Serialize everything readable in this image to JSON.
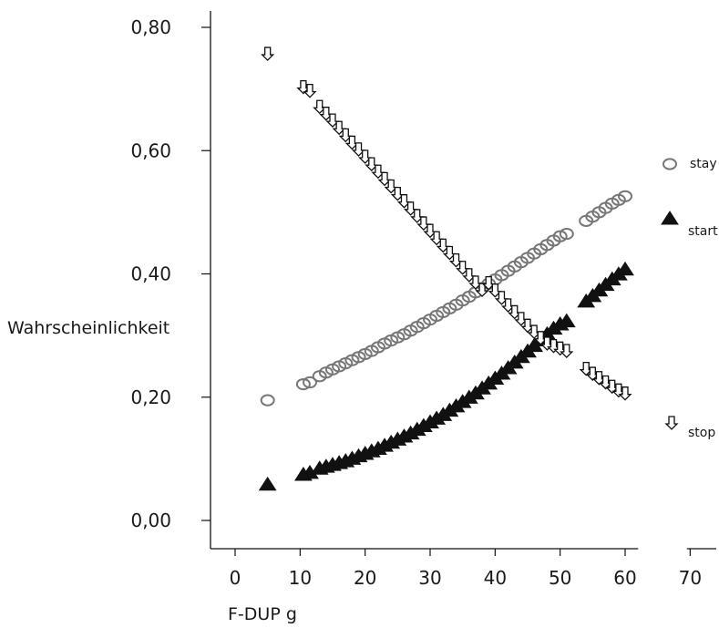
{
  "chart_data": {
    "type": "scatter",
    "title": "",
    "xlabel": "F-DUP g",
    "ylabel": "Wahrscheinlichkeit",
    "xlim": [
      -3.5,
      72
    ],
    "ylim": [
      -0.045,
      0.825
    ],
    "x_ticks": [
      0,
      10,
      20,
      30,
      40,
      50,
      60,
      70
    ],
    "y_ticks": [
      0.0,
      0.2,
      0.4,
      0.6,
      0.8
    ],
    "x_tick_labels": [
      "0",
      "10",
      "20",
      "30",
      "40",
      "50",
      "60",
      "70"
    ],
    "y_tick_labels": [
      "0,00",
      "0,20",
      "0,40",
      "0,60",
      "0,80"
    ],
    "grid": false,
    "legend_position": "right",
    "series": [
      {
        "name": "stay",
        "marker": "circle-open",
        "color": "#777777",
        "points": [
          [
            5,
            0.195
          ],
          [
            10.5,
            0.221
          ],
          [
            11.5,
            0.224
          ],
          [
            13,
            0.234
          ],
          [
            14,
            0.24
          ],
          [
            15,
            0.245
          ],
          [
            16,
            0.25
          ],
          [
            17,
            0.255
          ],
          [
            18,
            0.26
          ],
          [
            19,
            0.265
          ],
          [
            20,
            0.27
          ],
          [
            21,
            0.275
          ],
          [
            22,
            0.281
          ],
          [
            23,
            0.287
          ],
          [
            24,
            0.292
          ],
          [
            25,
            0.297
          ],
          [
            26,
            0.302
          ],
          [
            27,
            0.308
          ],
          [
            28,
            0.314
          ],
          [
            29,
            0.32
          ],
          [
            30,
            0.326
          ],
          [
            31,
            0.332
          ],
          [
            32,
            0.338
          ],
          [
            33,
            0.344
          ],
          [
            34,
            0.35
          ],
          [
            35,
            0.357
          ],
          [
            36,
            0.363
          ],
          [
            37,
            0.37
          ],
          [
            38,
            0.377
          ],
          [
            39,
            0.384
          ],
          [
            40,
            0.391
          ],
          [
            41,
            0.398
          ],
          [
            42,
            0.405
          ],
          [
            43,
            0.412
          ],
          [
            44,
            0.419
          ],
          [
            45,
            0.426
          ],
          [
            46,
            0.433
          ],
          [
            47,
            0.44
          ],
          [
            48,
            0.447
          ],
          [
            49,
            0.454
          ],
          [
            50,
            0.461
          ],
          [
            51,
            0.465
          ],
          [
            54,
            0.486
          ],
          [
            55,
            0.493
          ],
          [
            56,
            0.5
          ],
          [
            57,
            0.507
          ],
          [
            58,
            0.514
          ],
          [
            59,
            0.52
          ],
          [
            60,
            0.526
          ]
        ]
      },
      {
        "name": "start",
        "marker": "triangle-filled",
        "color": "#111111",
        "points": [
          [
            5,
            0.058
          ],
          [
            10.5,
            0.074
          ],
          [
            11.5,
            0.077
          ],
          [
            13,
            0.084
          ],
          [
            14,
            0.087
          ],
          [
            15,
            0.09
          ],
          [
            16,
            0.093
          ],
          [
            17,
            0.096
          ],
          [
            18,
            0.1
          ],
          [
            19,
            0.104
          ],
          [
            20,
            0.108
          ],
          [
            21,
            0.112
          ],
          [
            22,
            0.116
          ],
          [
            23,
            0.121
          ],
          [
            24,
            0.126
          ],
          [
            25,
            0.131
          ],
          [
            26,
            0.136
          ],
          [
            27,
            0.141
          ],
          [
            28,
            0.147
          ],
          [
            29,
            0.153
          ],
          [
            30,
            0.159
          ],
          [
            31,
            0.165
          ],
          [
            32,
            0.171
          ],
          [
            33,
            0.178
          ],
          [
            34,
            0.185
          ],
          [
            35,
            0.192
          ],
          [
            36,
            0.199
          ],
          [
            37,
            0.206
          ],
          [
            38,
            0.214
          ],
          [
            39,
            0.222
          ],
          [
            40,
            0.23
          ],
          [
            41,
            0.238
          ],
          [
            42,
            0.247
          ],
          [
            43,
            0.256
          ],
          [
            44,
            0.265
          ],
          [
            45,
            0.274
          ],
          [
            46,
            0.283
          ],
          [
            47,
            0.292
          ],
          [
            48,
            0.302
          ],
          [
            49,
            0.311
          ],
          [
            50,
            0.318
          ],
          [
            51,
            0.323
          ],
          [
            54,
            0.355
          ],
          [
            55,
            0.364
          ],
          [
            56,
            0.373
          ],
          [
            57,
            0.382
          ],
          [
            58,
            0.391
          ],
          [
            59,
            0.399
          ],
          [
            60,
            0.407
          ]
        ]
      },
      {
        "name": "stop",
        "marker": "arrow-down-open",
        "color": "#111111",
        "points": [
          [
            5,
            0.757
          ],
          [
            10.5,
            0.703
          ],
          [
            11.5,
            0.697
          ],
          [
            13,
            0.671
          ],
          [
            14,
            0.66
          ],
          [
            15,
            0.649
          ],
          [
            16,
            0.637
          ],
          [
            17,
            0.625
          ],
          [
            18,
            0.613
          ],
          [
            19,
            0.602
          ],
          [
            20,
            0.59
          ],
          [
            21,
            0.578
          ],
          [
            22,
            0.566
          ],
          [
            23,
            0.554
          ],
          [
            24,
            0.542
          ],
          [
            25,
            0.53
          ],
          [
            26,
            0.518
          ],
          [
            27,
            0.506
          ],
          [
            28,
            0.494
          ],
          [
            29,
            0.482
          ],
          [
            30,
            0.47
          ],
          [
            31,
            0.458
          ],
          [
            32,
            0.446
          ],
          [
            33,
            0.434
          ],
          [
            34,
            0.422
          ],
          [
            35,
            0.41
          ],
          [
            36,
            0.398
          ],
          [
            37,
            0.386
          ],
          [
            38,
            0.374
          ],
          [
            39,
            0.385
          ],
          [
            40,
            0.373
          ],
          [
            41,
            0.361
          ],
          [
            42,
            0.349
          ],
          [
            43,
            0.338
          ],
          [
            44,
            0.327
          ],
          [
            45,
            0.316
          ],
          [
            46,
            0.306
          ],
          [
            47,
            0.296
          ],
          [
            48,
            0.287
          ],
          [
            49,
            0.283
          ],
          [
            50,
            0.279
          ],
          [
            51,
            0.275
          ],
          [
            54,
            0.246
          ],
          [
            55,
            0.238
          ],
          [
            56,
            0.231
          ],
          [
            57,
            0.224
          ],
          [
            58,
            0.217
          ],
          [
            59,
            0.211
          ],
          [
            60,
            0.206
          ]
        ]
      }
    ]
  }
}
